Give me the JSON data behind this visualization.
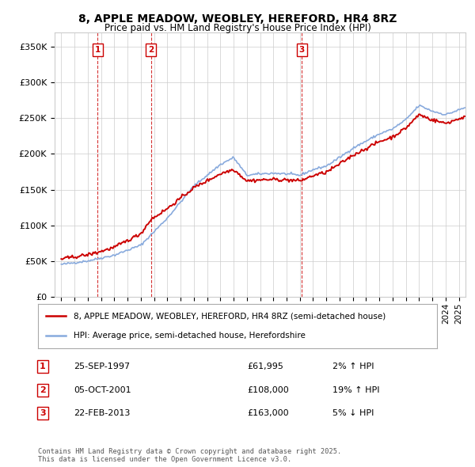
{
  "title": "8, APPLE MEADOW, WEOBLEY, HEREFORD, HR4 8RZ",
  "subtitle": "Price paid vs. HM Land Registry's House Price Index (HPI)",
  "purchases": [
    {
      "date": 1997.73,
      "price": 61995,
      "label": "1"
    },
    {
      "date": 2001.76,
      "price": 108000,
      "label": "2"
    },
    {
      "date": 2013.14,
      "price": 163000,
      "label": "3"
    }
  ],
  "purchase_dates_str": [
    "25-SEP-1997",
    "05-OCT-2001",
    "22-FEB-2013"
  ],
  "purchase_prices_str": [
    "£61,995",
    "£108,000",
    "£163,000"
  ],
  "purchase_hpi_str": [
    "2% ↑ HPI",
    "19% ↑ HPI",
    "5% ↓ HPI"
  ],
  "legend_property": "8, APPLE MEADOW, WEOBLEY, HEREFORD, HR4 8RZ (semi-detached house)",
  "legend_hpi": "HPI: Average price, semi-detached house, Herefordshire",
  "footer": "Contains HM Land Registry data © Crown copyright and database right 2025.\nThis data is licensed under the Open Government Licence v3.0.",
  "property_color": "#cc0000",
  "hpi_color": "#88aadd",
  "vline_color": "#cc0000",
  "ylim": [
    0,
    370000
  ],
  "yticks": [
    0,
    50000,
    100000,
    150000,
    200000,
    250000,
    300000,
    350000
  ],
  "xlim": [
    1994.5,
    2025.5
  ],
  "background_color": "#ffffff",
  "grid_color": "#cccccc"
}
